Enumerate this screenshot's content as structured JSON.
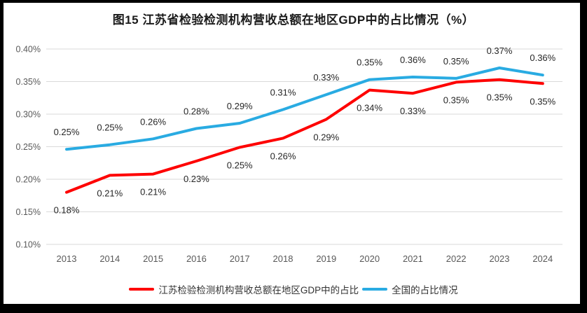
{
  "frame": {
    "background": "#000000",
    "chart_background": "#FFFFFF",
    "gridline_color": "#D9D9D9",
    "tick_text_color": "#595959",
    "data_label_color": "#262626"
  },
  "chart_data": {
    "type": "line",
    "title": "图15  江苏省检验检测机构营收总额在地区GDP中的占比情况（%）",
    "xlabel": "",
    "ylabel": "",
    "categories": [
      "2013",
      "2014",
      "2015",
      "2016",
      "2017",
      "2018",
      "2019",
      "2020",
      "2021",
      "2022",
      "2023",
      "2024"
    ],
    "y_tick_labels": [
      "0.40%",
      "0.35%",
      "0.30%",
      "0.25%",
      "0.20%",
      "0.15%",
      "0.10%"
    ],
    "y_tick_values": [
      0.4,
      0.35,
      0.3,
      0.25,
      0.2,
      0.15,
      0.1
    ],
    "ylim": [
      0.1,
      0.4
    ],
    "grid": true,
    "legend_position": "bottom",
    "series": [
      {
        "name": "江苏检验检测机构营收总额在地区GDP中的占比",
        "color": "#FE0000",
        "label_side": "below",
        "labels": [
          "0.18%",
          "0.21%",
          "0.21%",
          "0.23%",
          "0.25%",
          "0.26%",
          "0.29%",
          "0.34%",
          "0.33%",
          "0.35%",
          "0.35%",
          "0.35%"
        ],
        "values": [
          0.18,
          0.21,
          0.21,
          0.23,
          0.25,
          0.26,
          0.29,
          0.34,
          0.33,
          0.35,
          0.35,
          0.35
        ],
        "plot_values": [
          0.18,
          0.206,
          0.208,
          0.228,
          0.249,
          0.263,
          0.292,
          0.337,
          0.332,
          0.349,
          0.353,
          0.347
        ]
      },
      {
        "name": "全国的占比情况",
        "color": "#29ABE2",
        "label_side": "above",
        "labels": [
          "0.25%",
          "0.25%",
          "0.26%",
          "0.28%",
          "0.29%",
          "0.31%",
          "0.33%",
          "0.35%",
          "0.36%",
          "0.35%",
          "0.37%",
          "0.36%"
        ],
        "values": [
          0.25,
          0.25,
          0.26,
          0.28,
          0.29,
          0.31,
          0.33,
          0.35,
          0.36,
          0.35,
          0.37,
          0.36
        ],
        "plot_values": [
          0.246,
          0.253,
          0.262,
          0.278,
          0.286,
          0.307,
          0.33,
          0.353,
          0.357,
          0.355,
          0.371,
          0.36
        ]
      }
    ]
  }
}
